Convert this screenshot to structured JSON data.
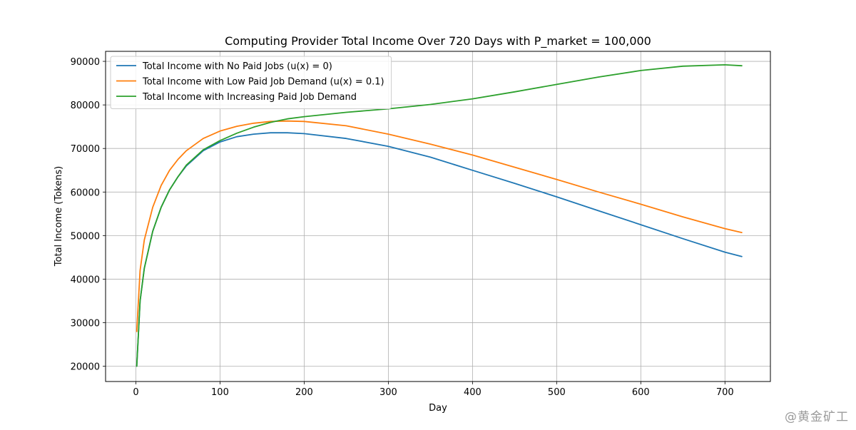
{
  "chart_data": {
    "type": "line",
    "title": "Computing Provider Total Income Over 720 Days with P_market = 100,000",
    "xlabel": "Day",
    "ylabel": "Total Income (Tokens)",
    "xlim": [
      -36,
      754
    ],
    "ylim": [
      16500,
      92300
    ],
    "xticks": [
      0,
      100,
      200,
      300,
      400,
      500,
      600,
      700
    ],
    "yticks": [
      20000,
      30000,
      40000,
      50000,
      60000,
      70000,
      80000,
      90000
    ],
    "grid": true,
    "legend_position": "top-left",
    "x": [
      1,
      5,
      10,
      20,
      30,
      40,
      50,
      60,
      80,
      100,
      120,
      140,
      160,
      180,
      200,
      250,
      300,
      350,
      400,
      450,
      500,
      550,
      600,
      650,
      700,
      720
    ],
    "series": [
      {
        "name": "Total Income with No Paid Jobs (u(x) = 0)",
        "color": "#1f77b4",
        "values": [
          20000,
          35000,
          42500,
          51000,
          56500,
          60500,
          63500,
          66000,
          69500,
          71500,
          72700,
          73300,
          73600,
          73600,
          73400,
          72300,
          70500,
          68000,
          65000,
          62000,
          58900,
          55700,
          52500,
          49300,
          46200,
          45200
        ]
      },
      {
        "name": "Total Income with Low Paid Job Demand (u(x) = 0.1)",
        "color": "#ff7f0e",
        "values": [
          28000,
          42000,
          49000,
          56500,
          61500,
          65000,
          67500,
          69500,
          72300,
          74000,
          75100,
          75800,
          76200,
          76300,
          76200,
          75200,
          73300,
          71000,
          68500,
          65700,
          62900,
          60000,
          57200,
          54300,
          51600,
          50700
        ]
      },
      {
        "name": "Total Income with Increasing Paid Job Demand",
        "color": "#2ca02c",
        "values": [
          20000,
          35000,
          42500,
          51000,
          56500,
          60500,
          63500,
          66200,
          69700,
          71800,
          73500,
          74900,
          76000,
          76800,
          77300,
          78300,
          79100,
          80100,
          81400,
          83000,
          84700,
          86400,
          87900,
          88900,
          89200,
          89000
        ]
      }
    ]
  },
  "watermark": "@黄金矿工"
}
